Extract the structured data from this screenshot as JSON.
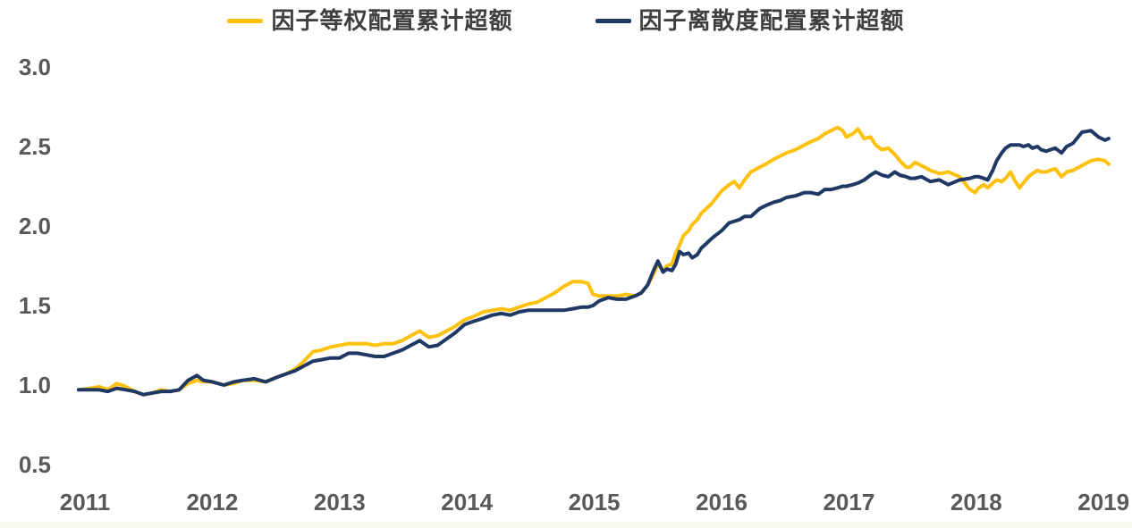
{
  "chart_data": {
    "type": "line",
    "title": "",
    "xlabel": "",
    "ylabel": "",
    "grid": false,
    "legend_position": "top-center",
    "xlim": [
      2010.9,
      2019.12
    ],
    "ylim": [
      0.5,
      3.0
    ],
    "x_ticks": [
      2011,
      2012,
      2013,
      2014,
      2015,
      2016,
      2017,
      2018,
      2019
    ],
    "y_ticks": [
      3.0,
      2.5,
      2.0,
      1.5,
      1.0,
      0.5
    ],
    "axis_label_color": "#595959",
    "x": [
      2010.95,
      2011.04,
      2011.11,
      2011.18,
      2011.25,
      2011.32,
      2011.39,
      2011.46,
      2011.53,
      2011.6,
      2011.67,
      2011.74,
      2011.81,
      2011.88,
      2011.93,
      2012.0,
      2012.09,
      2012.17,
      2012.24,
      2012.33,
      2012.42,
      2012.51,
      2012.58,
      2012.65,
      2012.72,
      2012.79,
      2012.86,
      2012.93,
      2013.0,
      2013.07,
      2013.14,
      2013.21,
      2013.28,
      2013.35,
      2013.42,
      2013.49,
      2013.56,
      2013.63,
      2013.7,
      2013.77,
      2013.84,
      2013.91,
      2013.98,
      2014.05,
      2014.13,
      2014.2,
      2014.27,
      2014.34,
      2014.41,
      2014.48,
      2014.55,
      2014.62,
      2014.69,
      2014.76,
      2014.83,
      2014.9,
      2014.95,
      2014.99,
      2015.04,
      2015.11,
      2015.18,
      2015.25,
      2015.32,
      2015.37,
      2015.42,
      2015.46,
      2015.5,
      2015.54,
      2015.57,
      2015.61,
      2015.64,
      2015.67,
      2015.7,
      2015.74,
      2015.77,
      2015.81,
      2015.84,
      2015.88,
      2015.92,
      2015.95,
      2016.0,
      2016.06,
      2016.1,
      2016.14,
      2016.18,
      2016.23,
      2016.3,
      2016.35,
      2016.41,
      2016.46,
      2016.51,
      2016.58,
      2016.65,
      2016.7,
      2016.76,
      2016.81,
      2016.86,
      2016.91,
      2016.95,
      2016.98,
      2017.03,
      2017.07,
      2017.12,
      2017.17,
      2017.21,
      2017.26,
      2017.31,
      2017.36,
      2017.4,
      2017.45,
      2017.48,
      2017.52,
      2017.57,
      2017.64,
      2017.71,
      2017.78,
      2017.87,
      2017.95,
      2017.99,
      2018.02,
      2018.06,
      2018.09,
      2018.13,
      2018.16,
      2018.2,
      2018.23,
      2018.27,
      2018.3,
      2018.34,
      2018.37,
      2018.41,
      2018.44,
      2018.48,
      2018.51,
      2018.55,
      2018.58,
      2018.62,
      2018.67,
      2018.71,
      2018.76,
      2018.83,
      2018.9,
      2018.96,
      2019.01,
      2019.04
    ],
    "series": [
      {
        "name": "因子等权配置累计超额",
        "color": "#FFC10E",
        "values": [
          0.97,
          0.98,
          0.99,
          0.97,
          1.01,
          0.99,
          0.96,
          0.94,
          0.95,
          0.97,
          0.96,
          0.97,
          1.01,
          1.03,
          1.02,
          1.02,
          1.0,
          1.01,
          1.03,
          1.03,
          1.02,
          1.05,
          1.07,
          1.1,
          1.15,
          1.21,
          1.22,
          1.24,
          1.25,
          1.26,
          1.26,
          1.26,
          1.25,
          1.26,
          1.26,
          1.28,
          1.31,
          1.34,
          1.3,
          1.31,
          1.34,
          1.37,
          1.41,
          1.43,
          1.46,
          1.47,
          1.48,
          1.47,
          1.49,
          1.51,
          1.52,
          1.55,
          1.58,
          1.62,
          1.65,
          1.65,
          1.64,
          1.57,
          1.56,
          1.56,
          1.56,
          1.57,
          1.56,
          1.58,
          1.63,
          1.69,
          1.76,
          1.72,
          1.75,
          1.76,
          1.83,
          1.88,
          1.94,
          1.97,
          2.01,
          2.04,
          2.08,
          2.11,
          2.14,
          2.17,
          2.22,
          2.26,
          2.28,
          2.24,
          2.29,
          2.34,
          2.37,
          2.39,
          2.42,
          2.44,
          2.46,
          2.48,
          2.51,
          2.53,
          2.55,
          2.58,
          2.6,
          2.62,
          2.6,
          2.56,
          2.58,
          2.61,
          2.55,
          2.56,
          2.51,
          2.48,
          2.49,
          2.45,
          2.41,
          2.37,
          2.37,
          2.4,
          2.38,
          2.35,
          2.33,
          2.34,
          2.31,
          2.23,
          2.21,
          2.24,
          2.26,
          2.24,
          2.27,
          2.29,
          2.28,
          2.3,
          2.34,
          2.29,
          2.24,
          2.27,
          2.31,
          2.33,
          2.35,
          2.34,
          2.34,
          2.35,
          2.36,
          2.31,
          2.34,
          2.35,
          2.38,
          2.41,
          2.42,
          2.41,
          2.39
        ]
      },
      {
        "name": "因子离散度配置累计超额",
        "color": "#1F3864",
        "values": [
          0.97,
          0.97,
          0.97,
          0.96,
          0.98,
          0.97,
          0.96,
          0.94,
          0.95,
          0.96,
          0.96,
          0.97,
          1.03,
          1.06,
          1.03,
          1.02,
          1.0,
          1.02,
          1.03,
          1.04,
          1.02,
          1.05,
          1.07,
          1.09,
          1.12,
          1.15,
          1.16,
          1.17,
          1.17,
          1.2,
          1.2,
          1.19,
          1.18,
          1.18,
          1.2,
          1.22,
          1.25,
          1.28,
          1.24,
          1.25,
          1.29,
          1.33,
          1.38,
          1.4,
          1.42,
          1.44,
          1.45,
          1.44,
          1.46,
          1.47,
          1.47,
          1.47,
          1.47,
          1.47,
          1.48,
          1.49,
          1.49,
          1.5,
          1.53,
          1.55,
          1.54,
          1.54,
          1.56,
          1.58,
          1.63,
          1.71,
          1.78,
          1.71,
          1.73,
          1.72,
          1.76,
          1.84,
          1.82,
          1.83,
          1.8,
          1.82,
          1.86,
          1.89,
          1.92,
          1.94,
          1.97,
          2.02,
          2.03,
          2.04,
          2.06,
          2.06,
          2.11,
          2.13,
          2.15,
          2.16,
          2.18,
          2.19,
          2.21,
          2.21,
          2.2,
          2.23,
          2.23,
          2.24,
          2.25,
          2.25,
          2.26,
          2.27,
          2.29,
          2.32,
          2.34,
          2.32,
          2.31,
          2.34,
          2.32,
          2.31,
          2.3,
          2.3,
          2.31,
          2.28,
          2.29,
          2.26,
          2.29,
          2.3,
          2.31,
          2.31,
          2.3,
          2.29,
          2.35,
          2.41,
          2.46,
          2.49,
          2.51,
          2.51,
          2.51,
          2.5,
          2.51,
          2.49,
          2.5,
          2.48,
          2.47,
          2.48,
          2.49,
          2.46,
          2.5,
          2.52,
          2.59,
          2.6,
          2.56,
          2.54,
          2.55
        ]
      }
    ]
  }
}
